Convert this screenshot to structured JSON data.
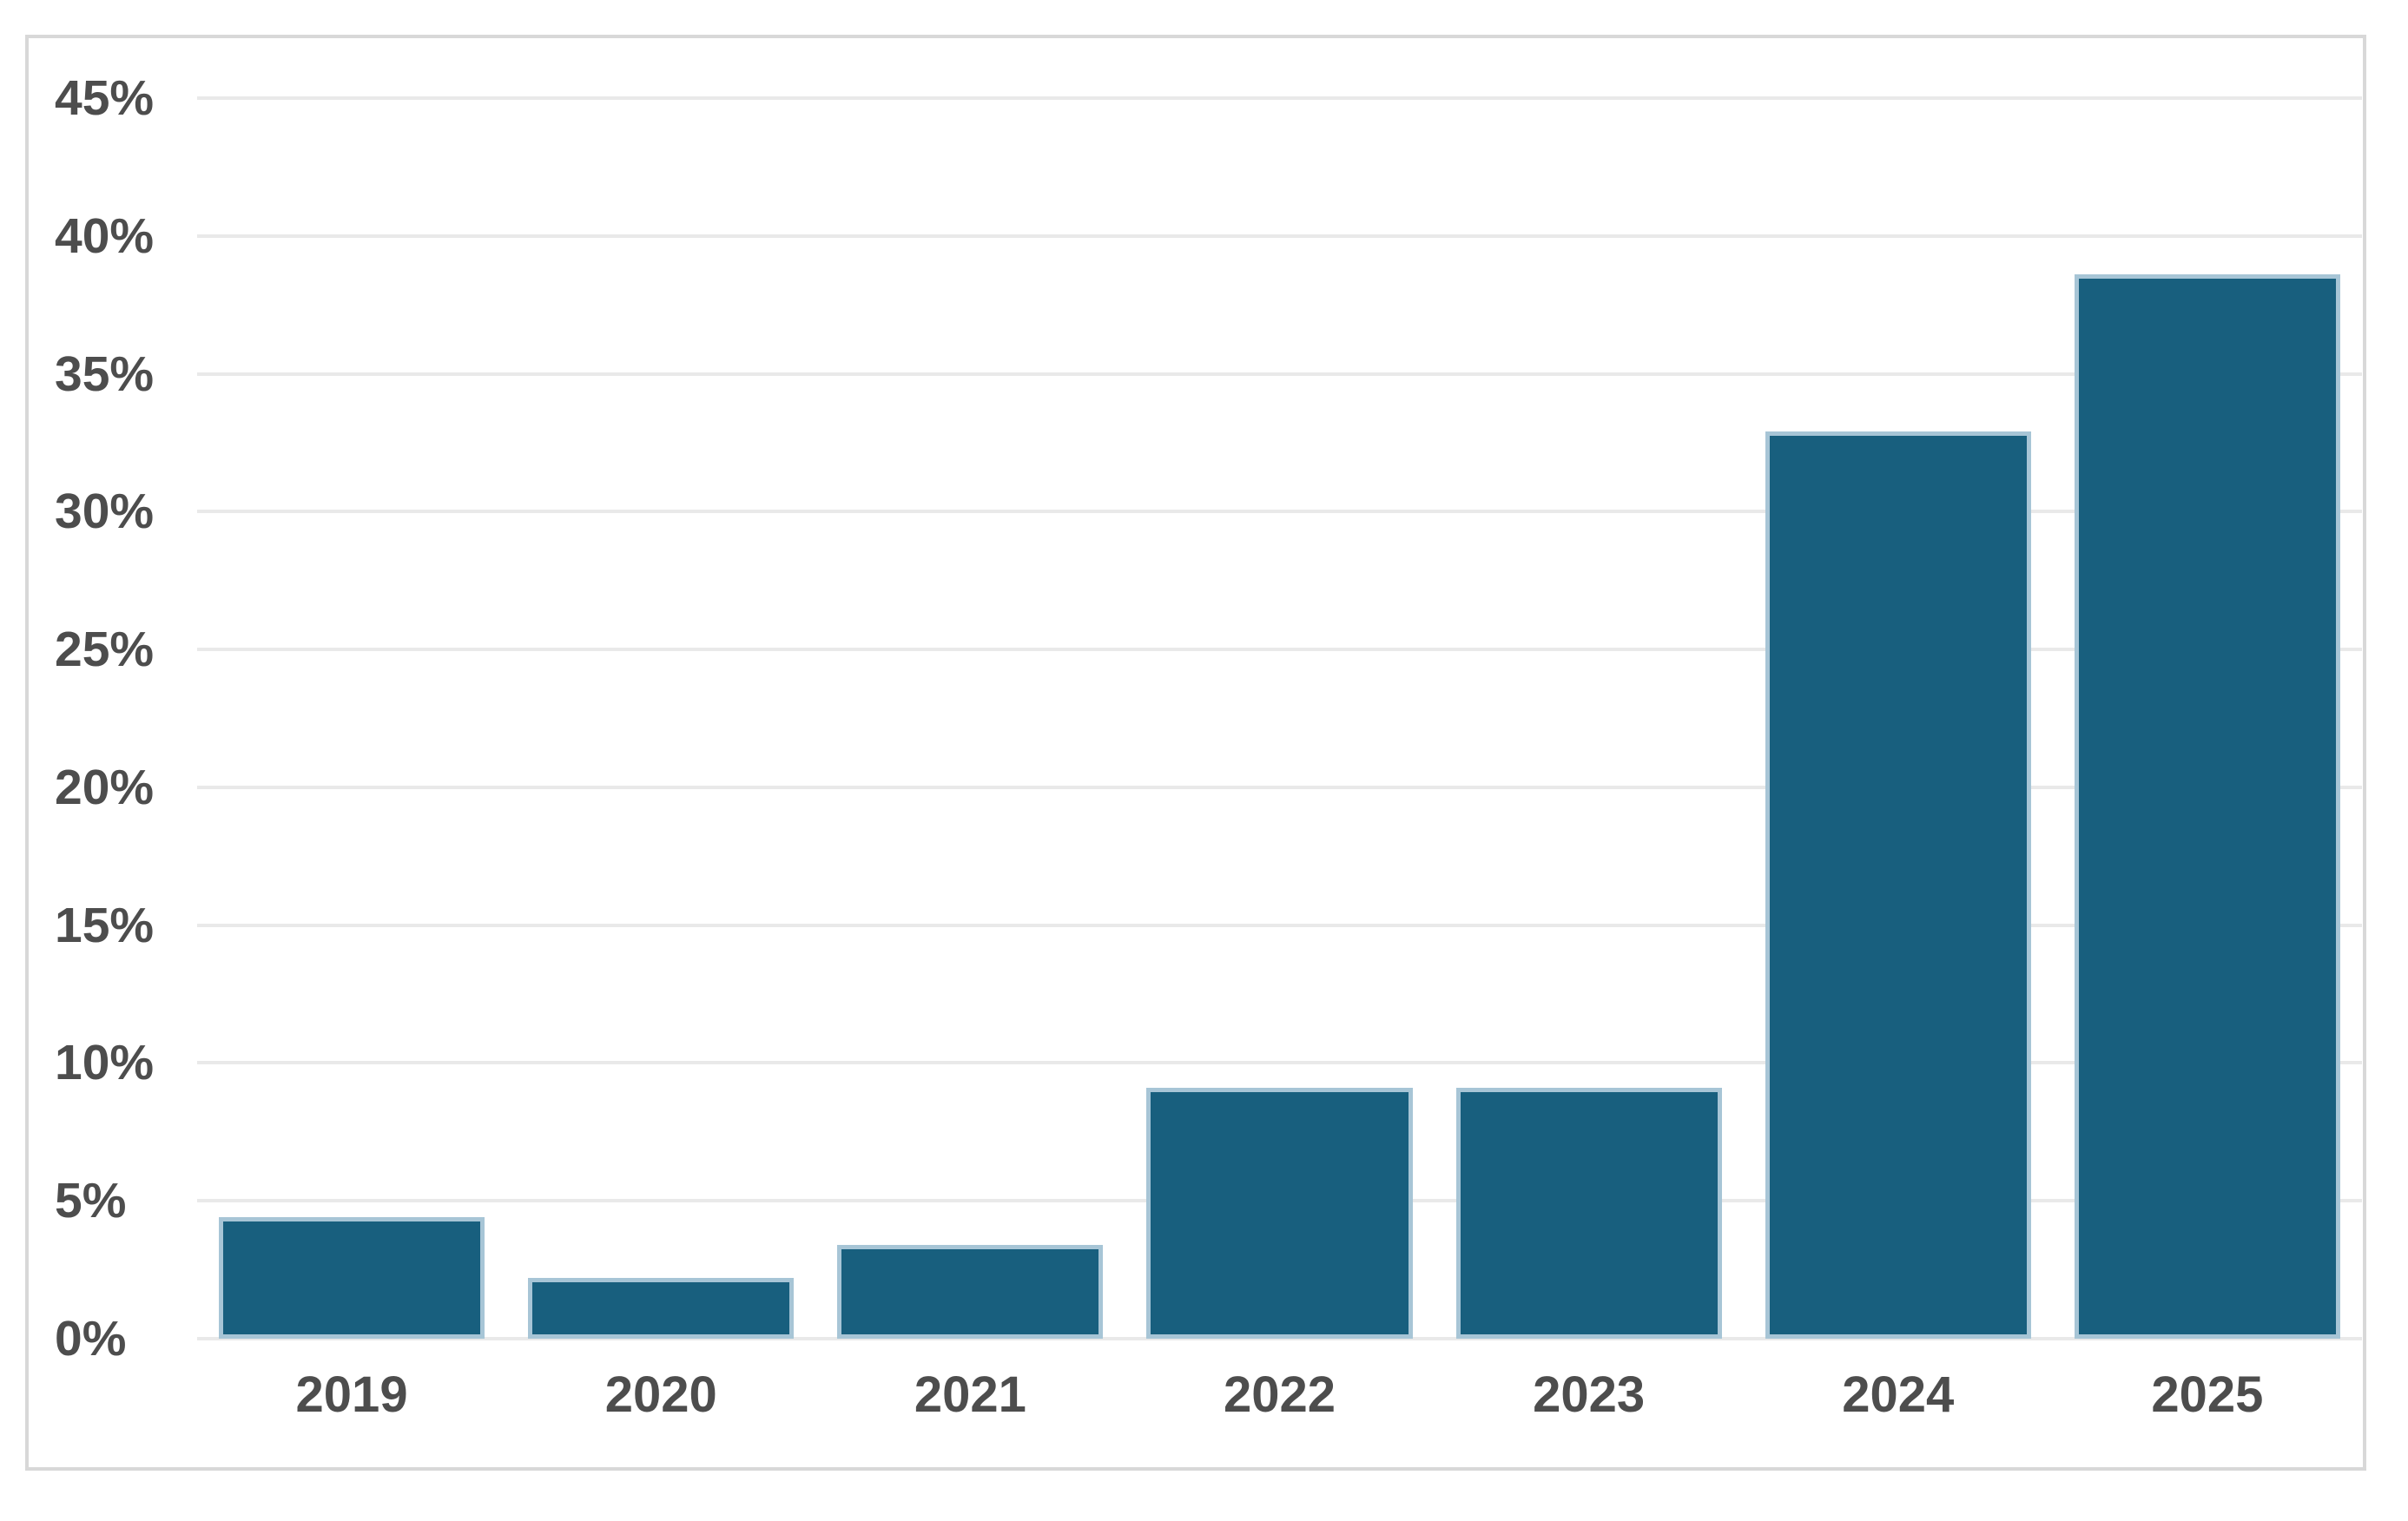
{
  "chart_data": {
    "type": "bar",
    "title": "",
    "xlabel": "",
    "ylabel": "",
    "categories": [
      "2019",
      "2020",
      "2021",
      "2022",
      "2023",
      "2024",
      "2025"
    ],
    "values": [
      4.4,
      2.2,
      3.4,
      9.1,
      9.1,
      32.9,
      38.6
    ],
    "ylim": [
      0,
      45
    ],
    "yticks": [
      {
        "value": 0,
        "label": "0%"
      },
      {
        "value": 5,
        "label": "5%"
      },
      {
        "value": 10,
        "label": "10%"
      },
      {
        "value": 15,
        "label": "15%"
      },
      {
        "value": 20,
        "label": "20%"
      },
      {
        "value": 25,
        "label": "25%"
      },
      {
        "value": 30,
        "label": "30%"
      },
      {
        "value": 35,
        "label": "35%"
      },
      {
        "value": 40,
        "label": "40%"
      },
      {
        "value": 45,
        "label": "45%"
      }
    ],
    "grid": "horizontal",
    "legend": "none",
    "colors": {
      "bar_fill": "#185f7e",
      "bar_edge": "#a7c5d6",
      "gridline": "#e9e9e9",
      "axis_text": "#4d4d4d",
      "frame_border": "#d8d8d8",
      "background": "#ffffff"
    }
  }
}
